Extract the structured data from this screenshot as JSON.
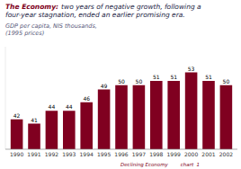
{
  "chart_data": {
    "type": "bar",
    "title": [
      "The Economy:",
      "two years of negative growth, following a",
      "four-year stagnation, ended an earlier promising era."
    ],
    "subtitle": [
      "GDP per capita, NIS thousands,",
      "(1995 prices)"
    ],
    "annotations": [
      {
        "text": "Declining Economy        chart  1"
      }
    ],
    "categories": [
      "1990",
      "1991",
      "1992",
      "1993",
      "1994",
      "1995",
      "1996",
      "1997",
      "1998",
      "1999",
      "2000",
      "2001",
      "2002"
    ],
    "values": [
      42,
      41,
      44,
      44,
      46,
      49,
      50,
      50,
      51,
      51,
      53,
      51,
      50
    ],
    "color": "#800020",
    "ylim": [
      35,
      59
    ],
    "data_labels": true,
    "tick_labels": "x",
    "grid": false
  }
}
